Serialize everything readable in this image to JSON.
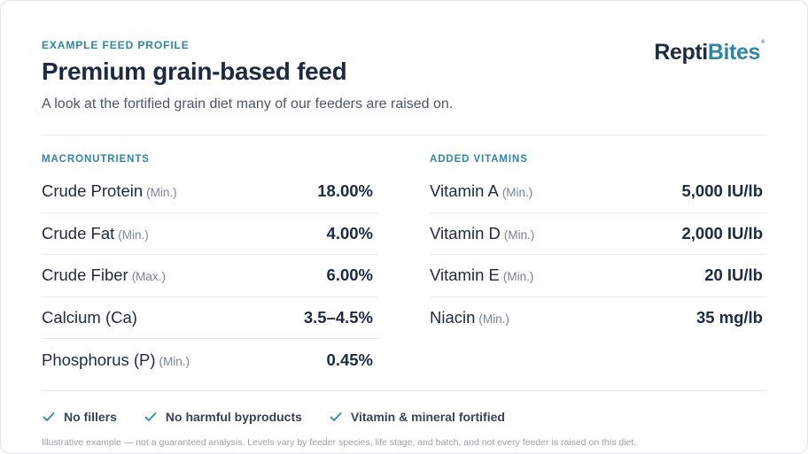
{
  "header": {
    "eyebrow": "EXAMPLE FEED PROFILE",
    "title": "Premium grain-based feed",
    "subtitle": "A look at the fortified grain diet many of our feeders are raised on."
  },
  "logo": {
    "part1": "Repti",
    "part2": "Bites",
    "mark": "®"
  },
  "macronutrients": {
    "title": "MACRONUTRIENTS",
    "rows": [
      {
        "name": "Crude Protein",
        "qualifier": "(Min.)",
        "value": "18.00%"
      },
      {
        "name": "Crude Fat",
        "qualifier": "(Min.)",
        "value": "4.00%"
      },
      {
        "name": "Crude Fiber",
        "qualifier": "(Max.)",
        "value": "6.00%"
      },
      {
        "name": "Calcium (Ca)",
        "qualifier": "",
        "value": "3.5–4.5%"
      },
      {
        "name": "Phosphorus (P)",
        "qualifier": "(Min.)",
        "value": "0.45%"
      }
    ]
  },
  "vitamins": {
    "title": "ADDED VITAMINS",
    "rows": [
      {
        "name": "Vitamin A",
        "qualifier": "(Min.)",
        "value": "5,000 IU/lb"
      },
      {
        "name": "Vitamin D",
        "qualifier": "(Min.)",
        "value": "2,000 IU/lb"
      },
      {
        "name": "Vitamin E",
        "qualifier": "(Min.)",
        "value": "20 IU/lb"
      },
      {
        "name": "Niacin",
        "qualifier": "(Min.)",
        "value": "35 mg/lb"
      }
    ]
  },
  "features": [
    {
      "icon": "check-icon",
      "label": "No fillers"
    },
    {
      "icon": "check-icon",
      "label": "No harmful byproducts"
    },
    {
      "icon": "check-icon",
      "label": "Vitamin & mineral fortified"
    }
  ],
  "colors": {
    "accent": "#2e86a8",
    "heading": "#1c2a44"
  },
  "disclaimer": "Illustrative example — not a guaranteed analysis. Levels vary by feeder species, life stage, and batch, and not every feeder is raised on this diet."
}
